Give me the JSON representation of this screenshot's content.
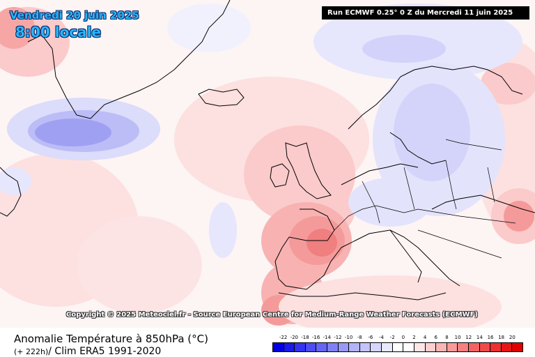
{
  "header": {
    "date_title": "Vendredi 20 juin 2025",
    "time_title": "8:00 locale",
    "run_label": "Run ECMWF 0.25° 0 Z du Mercredi 11 juin 2025"
  },
  "map": {
    "copyright": "Copyright © 2025 Meteociel.fr - Source European Centre for Medium-Range Weather Forecasts (ECMWF)"
  },
  "footer": {
    "variable_title": "Anomalie Température à 850hPa (°C)",
    "lead_time": "(+ 222h)",
    "climatology": "/ Clim ERA5 1991-2020"
  },
  "legend": {
    "tick_labels": [
      "-22",
      "-20",
      "-18",
      "-16",
      "-14",
      "-12",
      "-10",
      "-8",
      "-6",
      "-4",
      "-2",
      "0",
      "2",
      "4",
      "6",
      "8",
      "10",
      "12",
      "14",
      "16",
      "18",
      "20"
    ],
    "colors": [
      "#0000e0",
      "#1a1aea",
      "#3333f0",
      "#4d4df2",
      "#6666f4",
      "#8080f6",
      "#9999f8",
      "#b3b3fa",
      "#c4c4fb",
      "#d6d6fc",
      "#e8e8fe",
      "#ffffff",
      "#ffffff",
      "#fee6e6",
      "#fdcfcf",
      "#fbb5b5",
      "#f99a9a",
      "#f67f7f",
      "#f26464",
      "#ee4a4a",
      "#ea3030",
      "#e61515",
      "#e00000"
    ]
  },
  "colors": {
    "title_blue": "#29b6f6",
    "warm_core": "#ee4a4a",
    "cold_core": "#8080f6"
  }
}
